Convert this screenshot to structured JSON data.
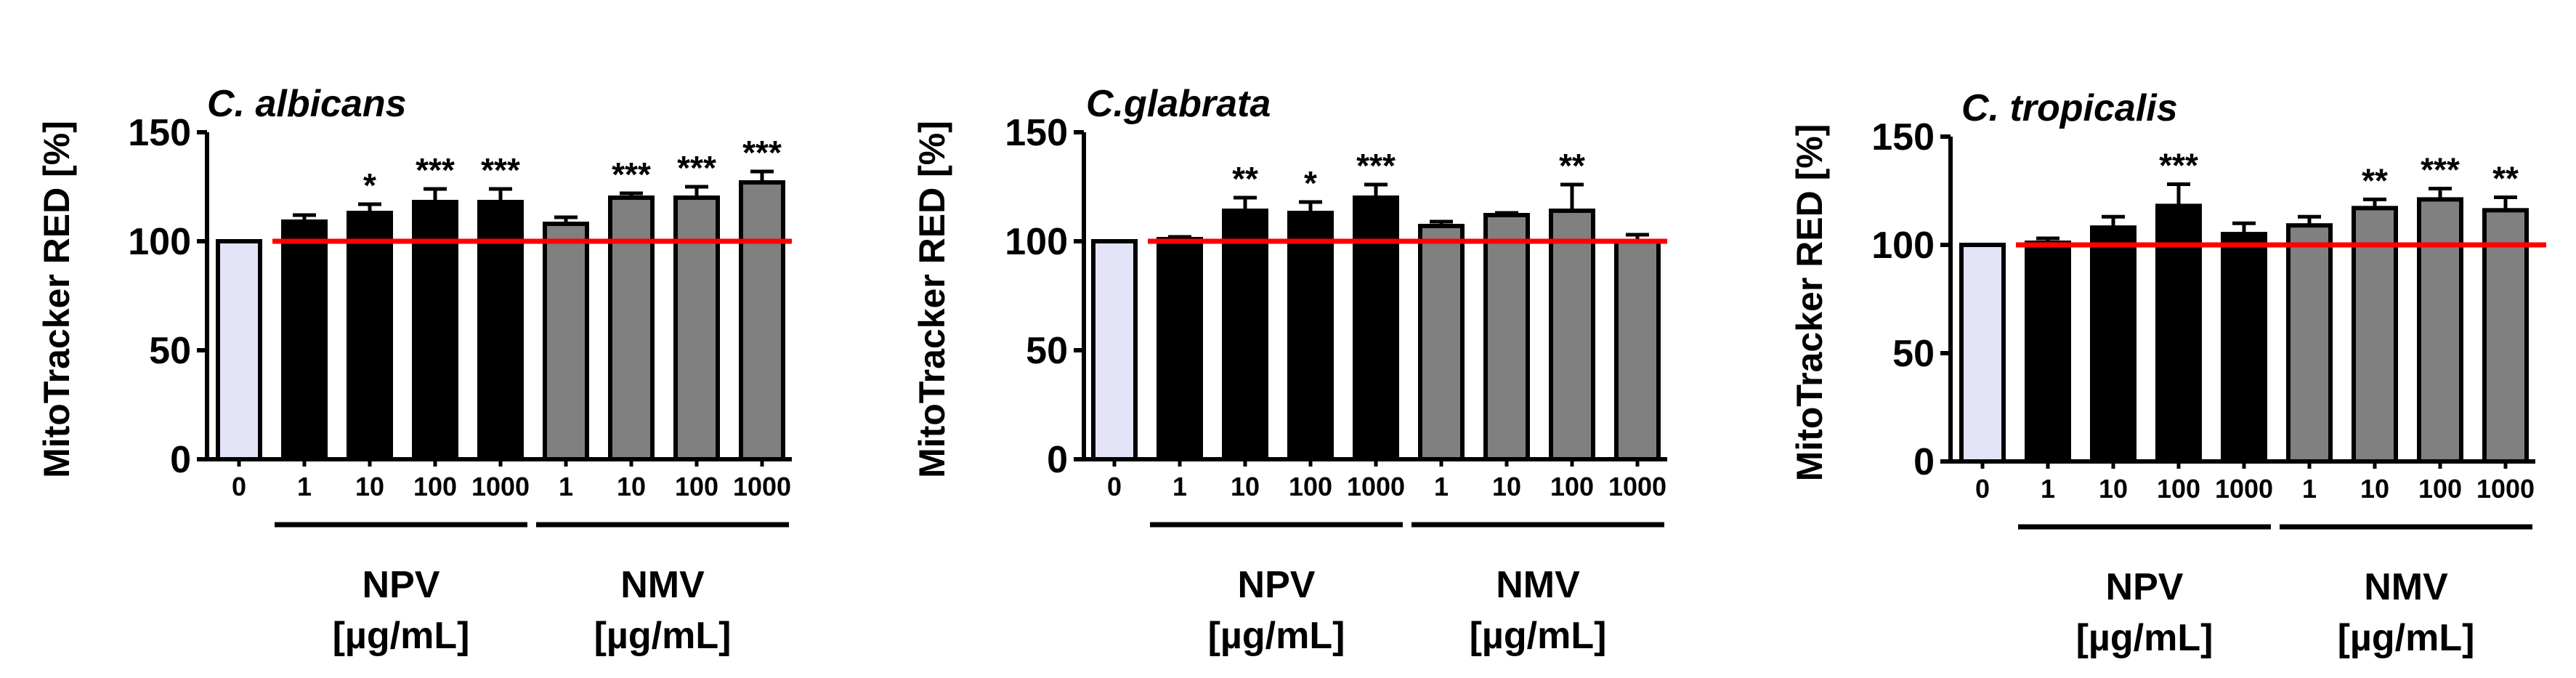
{
  "colors": {
    "control": "#e3e3f8",
    "npv": "#000000",
    "nmv": "#808080",
    "reference_line": "#ff0000",
    "axis": "#000000"
  },
  "chart_data": [
    {
      "type": "bar",
      "title": "C. albicans",
      "ylabel": "MitoTracker RED [%]",
      "ylim": [
        0,
        150
      ],
      "yticks": [
        0,
        50,
        100,
        150
      ],
      "reference_line": 100,
      "categories": [
        "0",
        "1",
        "10",
        "100",
        "1000",
        "1",
        "10",
        "100",
        "1000"
      ],
      "groups": [
        "control",
        "npv",
        "npv",
        "npv",
        "npv",
        "nmv",
        "nmv",
        "nmv",
        "nmv"
      ],
      "values": [
        100,
        109,
        113,
        118,
        118,
        108,
        120,
        120,
        127
      ],
      "errors": [
        0,
        3,
        4,
        6,
        6,
        3,
        2,
        5,
        5
      ],
      "significance": [
        "",
        "",
        "*",
        "***",
        "***",
        "",
        "***",
        "***",
        "***"
      ],
      "group_labels": [
        {
          "line1": "NPV",
          "line2": "[µg/mL]"
        },
        {
          "line1": "NMV",
          "line2": "[µg/mL]"
        }
      ]
    },
    {
      "type": "bar",
      "title": "C.glabrata",
      "ylabel": "MitoTracker RED [%]",
      "ylim": [
        0,
        150
      ],
      "yticks": [
        0,
        50,
        100,
        150
      ],
      "reference_line": 100,
      "categories": [
        "0",
        "1",
        "10",
        "100",
        "1000",
        "1",
        "10",
        "100",
        "1000"
      ],
      "groups": [
        "control",
        "npv",
        "npv",
        "npv",
        "npv",
        "nmv",
        "nmv",
        "nmv",
        "nmv"
      ],
      "values": [
        100,
        101,
        114,
        113,
        120,
        107,
        112,
        114,
        100
      ],
      "errors": [
        0,
        1,
        6,
        5,
        6,
        2,
        1,
        12,
        3
      ],
      "significance": [
        "",
        "",
        "**",
        "*",
        "***",
        "",
        "",
        "**",
        ""
      ],
      "group_labels": [
        {
          "line1": "NPV",
          "line2": "[µg/mL]"
        },
        {
          "line1": "NMV",
          "line2": "[µg/mL]"
        }
      ]
    },
    {
      "type": "bar",
      "title": "C. tropicalis",
      "ylabel": "MitoTracker RED [%]",
      "ylim": [
        0,
        150
      ],
      "yticks": [
        0,
        50,
        100,
        150
      ],
      "reference_line": 100,
      "categories": [
        "0",
        "1",
        "10",
        "100",
        "1000",
        "1",
        "10",
        "100",
        "1000"
      ],
      "groups": [
        "control",
        "npv",
        "npv",
        "npv",
        "npv",
        "nmv",
        "nmv",
        "nmv",
        "nmv"
      ],
      "values": [
        100,
        101,
        108,
        118,
        105,
        109,
        117,
        121,
        116
      ],
      "errors": [
        0,
        2,
        5,
        10,
        5,
        4,
        4,
        5,
        6
      ],
      "significance": [
        "",
        "",
        "",
        "***",
        "",
        "",
        "**",
        "***",
        "**"
      ],
      "group_labels": [
        {
          "line1": "NPV",
          "line2": "[µg/mL]"
        },
        {
          "line1": "NMV",
          "line2": "[µg/mL]"
        }
      ]
    }
  ]
}
